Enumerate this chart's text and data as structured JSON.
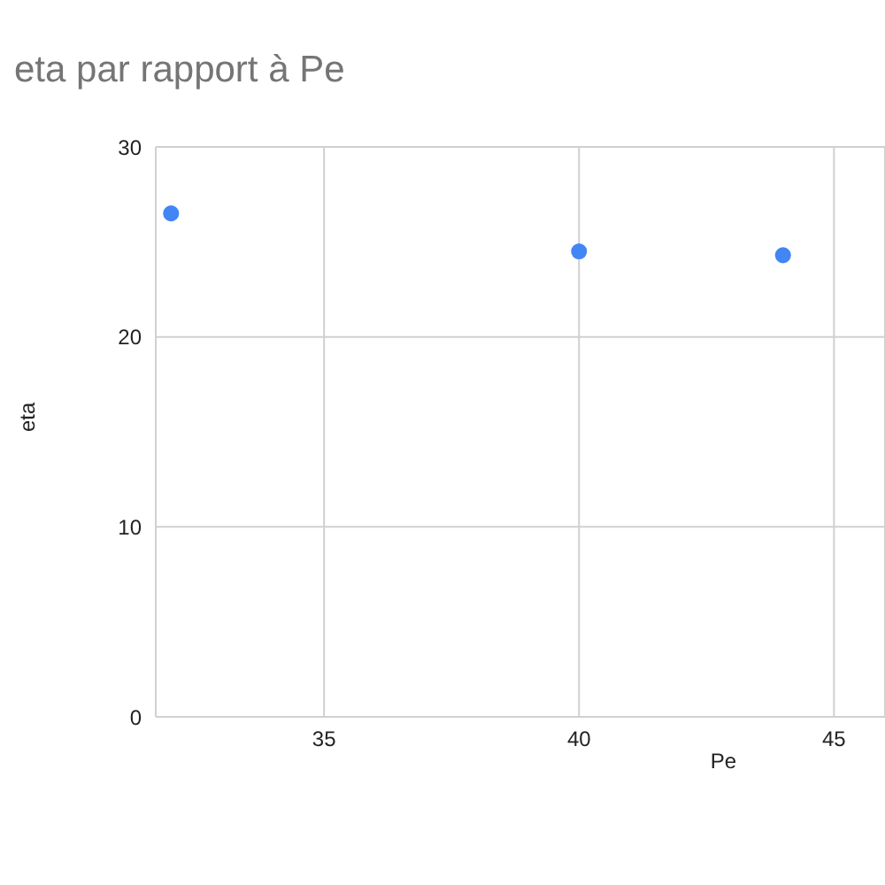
{
  "chart_data": {
    "type": "scatter",
    "title": "eta par rapport à Pe",
    "xlabel": "Pe",
    "ylabel": "eta",
    "x": [
      32,
      40,
      44
    ],
    "series": [
      {
        "color": "#4285f4",
        "values": [
          26.5,
          24.5,
          24.3
        ]
      }
    ],
    "xlim": [
      31.7,
      46
    ],
    "xticks": [
      35,
      40,
      45
    ],
    "ylim": [
      0,
      30
    ],
    "yticks": [
      0,
      10,
      20,
      30
    ],
    "grid": true,
    "legend": false,
    "marker": "circle"
  }
}
